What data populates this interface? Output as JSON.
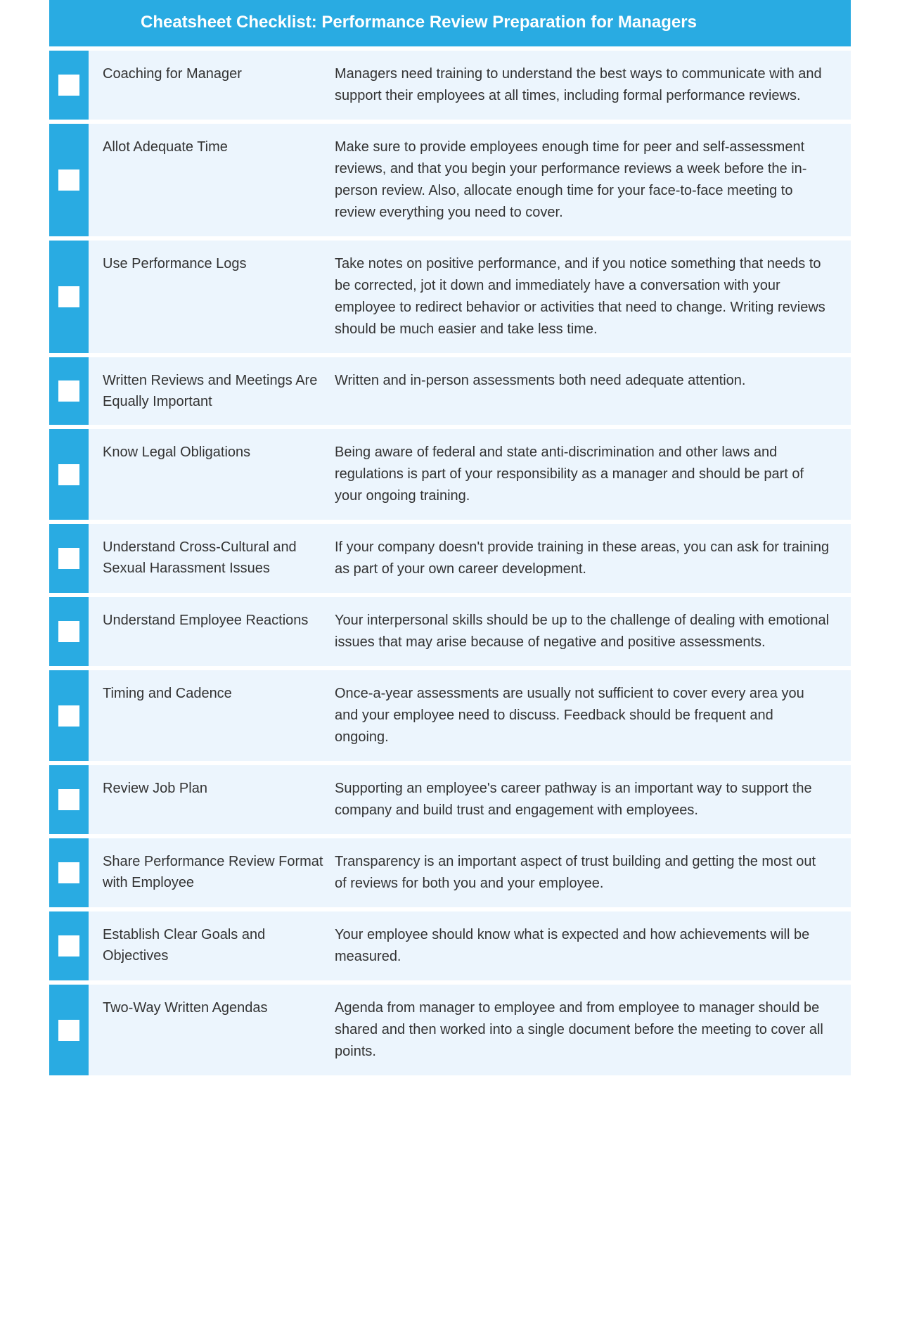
{
  "header": {
    "title": "Cheatsheet Checklist: Performance Review Preparation for Managers"
  },
  "colors": {
    "accent": "#29abe2",
    "row_bg": "#ecf5fd",
    "text": "#333333",
    "checkbox_fill": "#ffffff"
  },
  "layout": {
    "container_width": 1140,
    "checkbox_col_width": 56,
    "title_col_width": 330,
    "row_gap": 6,
    "font_size_header": 24,
    "font_size_body": 20
  },
  "items": [
    {
      "title": "Coaching for Manager",
      "desc": "Managers need training to understand the best ways to communicate with and support their employees at all times, including formal performance reviews."
    },
    {
      "title": "Allot Adequate Time",
      "desc": "Make sure to provide employees enough time for peer and self-assessment reviews, and that you begin your performance reviews a week before the in-person review. Also, allocate enough time for your face-to-face meeting to review everything you need to cover."
    },
    {
      "title": "Use Performance Logs",
      "desc": "Take notes on positive performance, and if you notice something that needs to be corrected, jot it down and immediately have a conversation with your employee to redirect behavior or activities that need to change. Writing reviews should be much easier and take less time."
    },
    {
      "title": "Written Reviews and Meetings Are Equally Important",
      "desc": "Written and in-person assessments both need adequate attention."
    },
    {
      "title": "Know Legal Obligations",
      "desc": "Being aware of federal and state anti-discrimination and other laws and regulations is part of your responsibility as a manager and should be part of your ongoing training."
    },
    {
      "title": "Understand Cross-Cultural and Sexual Harassment Issues",
      "desc": "If your company doesn't provide training in these areas, you can ask for training as part of your own career development."
    },
    {
      "title": "Understand Employee Reactions",
      "desc": "Your interpersonal skills should be up to the challenge of dealing with emotional issues that may arise because of negative and positive assessments."
    },
    {
      "title": "Timing and Cadence",
      "desc": "Once-a-year assessments are usually not sufficient to cover every area you and your employee need to discuss. Feedback should be frequent and ongoing."
    },
    {
      "title": "Review Job Plan",
      "desc": "Supporting an employee's career pathway is an important way to support the company and build trust and engagement with employees."
    },
    {
      "title": "Share Performance Review Format with Employee",
      "desc": "Transparency is an important aspect of trust building and getting the most out of reviews for both you and your employee."
    },
    {
      "title": "Establish Clear Goals and Objectives",
      "desc": "Your employee should know what is expected and how achievements will be measured."
    },
    {
      "title": "Two-Way Written Agendas",
      "desc": "Agenda from manager to employee and from employee to manager should be shared and then worked into a single document before the meeting to cover all points."
    }
  ]
}
